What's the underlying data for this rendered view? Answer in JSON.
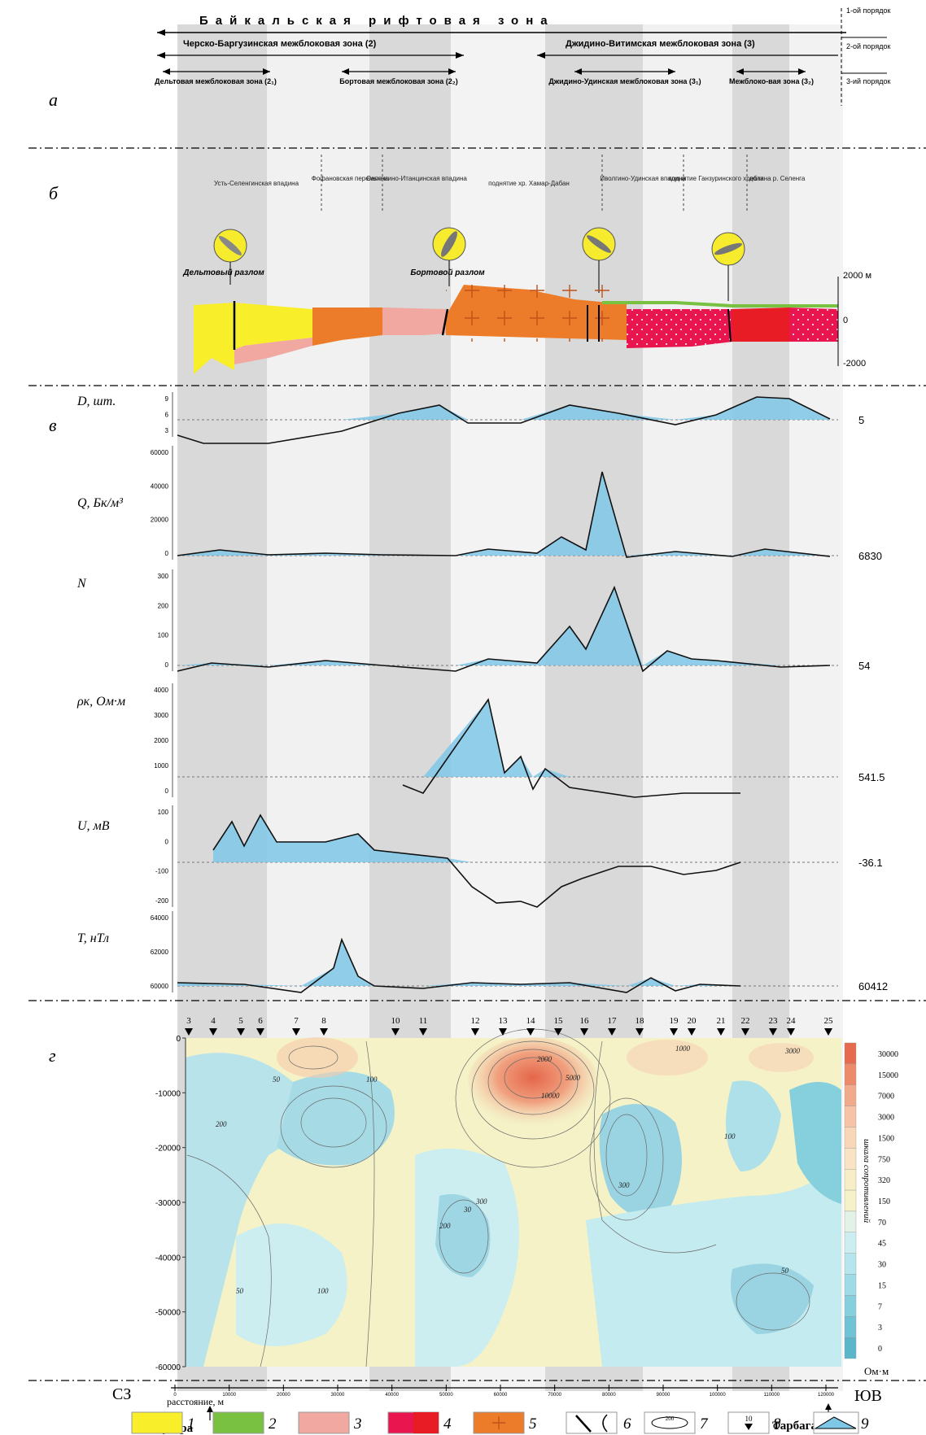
{
  "header": {
    "rift_zone": "Байкальская рифтовая зона",
    "order1": "1-ой порядок",
    "order2": "2-ой порядок",
    "order3": "3-ий порядок",
    "zone2": "Черско-Баргузинская межблоковая зона (2)",
    "zone3": "Джидино-Витимская межблоковая зона (3)",
    "z2_1": "Дельтовая межблоковая зона (2₁)",
    "z2_2": "Бортовая межблоковая зона (2₂)",
    "z3_1": "Джидино-Удинская межблоковая зона (3₁)",
    "z3_2": "Межблоко-вая зона (3₂)"
  },
  "panel_letters": {
    "a": "а",
    "b": "б",
    "v": "в",
    "g": "г"
  },
  "structures": [
    "Усть-Селенгинская впадина",
    "Фофановская перемычка",
    "Селенгино-Итанцинская впадина",
    "поднятие хр. Хамар-Дабан",
    "Иволгино-Удинская впадина",
    "поднятие Ганзуринского хребта",
    "долина р. Селенга"
  ],
  "faults": {
    "f1": "Дельтовый разлом",
    "f2": "Бортовой разлом"
  },
  "section_axis": {
    "top": "2000 м",
    "mid": "0",
    "bottom": "-2000"
  },
  "profiles": [
    {
      "id": "D",
      "label": "D, шт.",
      "mean": "5",
      "ticks": [
        "9",
        "6",
        "3"
      ]
    },
    {
      "id": "Q",
      "label": "Q, Бк/м³",
      "mean": "6830",
      "ticks": [
        "60000",
        "40000",
        "20000",
        "0"
      ]
    },
    {
      "id": "N",
      "label": "N",
      "mean": "54",
      "ticks": [
        "300",
        "200",
        "100",
        "0"
      ]
    },
    {
      "id": "rho",
      "label": "ρк, Ом·м",
      "mean": "541.5",
      "ticks": [
        "4000",
        "3000",
        "2000",
        "1000",
        "0"
      ]
    },
    {
      "id": "U",
      "label": "U, мВ",
      "mean": "-36.1",
      "ticks": [
        "100",
        "0",
        "-100",
        "-200"
      ]
    },
    {
      "id": "T",
      "label": "T, нТл",
      "mean": "60412",
      "ticks": [
        "64000",
        "62000",
        "60000"
      ]
    }
  ],
  "stations": [
    "3",
    "4",
    "5",
    "6",
    "7",
    "8",
    "10",
    "11",
    "12",
    "13",
    "14",
    "15",
    "16",
    "17",
    "18",
    "19",
    "20",
    "21",
    "22",
    "23",
    "24",
    "25"
  ],
  "depth_ticks": [
    "0",
    "-10000",
    "-20000",
    "-30000",
    "-40000",
    "-50000",
    "-60000"
  ],
  "contour_labels": [
    "1000",
    "2000",
    "5000",
    "10000",
    "50",
    "100",
    "200",
    "3000",
    "50",
    "300",
    "100",
    "200",
    "50",
    "100",
    "300",
    "30"
  ],
  "resistivity_scale": {
    "values": [
      "30000",
      "15000",
      "7000",
      "3000",
      "1500",
      "750",
      "320",
      "150",
      "70",
      "45",
      "30",
      "15",
      "7",
      "3",
      "0"
    ],
    "unit": "Ом·м",
    "title": "шкала сопротивлений",
    "colors": [
      "#e66a4e",
      "#ec8a6a",
      "#f2aa8c",
      "#f6c3a6",
      "#f8d6b8",
      "#f8e3c4",
      "#f7edc6",
      "#f4f2c6",
      "#e3f2e6",
      "#cdeef0",
      "#b5e6ee",
      "#9edbe6",
      "#86cfdd",
      "#70c3d4",
      "#5bb6ca"
    ]
  },
  "axis_bottom": {
    "nw": "СЗ",
    "se": "ЮВ",
    "distance": "расстояние, м",
    "dist_ticks": [
      "0",
      "10000",
      "20000",
      "30000",
      "40000",
      "50000",
      "60000",
      "70000",
      "80000",
      "90000",
      "100000",
      "110000",
      "120000"
    ]
  },
  "places": {
    "kudara": "с. Кудара",
    "tarbagatai": "с. Тарбагатай"
  },
  "legend": [
    {
      "n": "1",
      "color": "#f8ee2a"
    },
    {
      "n": "2",
      "color": "#79c141"
    },
    {
      "n": "3",
      "color": "#f0a8a0"
    },
    {
      "n": "4",
      "color": "#e8154e"
    },
    {
      "n": "5",
      "color": "#ed7c2a"
    },
    {
      "n": "6",
      "color": ""
    },
    {
      "n": "7",
      "color": ""
    },
    {
      "n": "8",
      "color": ""
    },
    {
      "n": "9",
      "color": "#7fc7e6"
    }
  ],
  "legend_sample": {
    "contour": "200",
    "station": "10"
  }
}
